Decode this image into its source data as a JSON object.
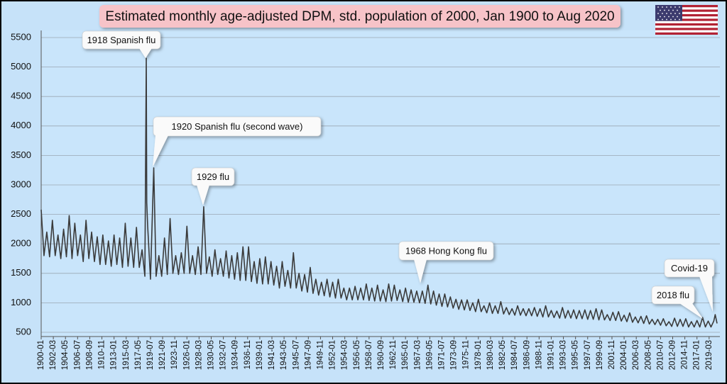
{
  "chart_data": {
    "type": "line",
    "title": "Estimated monthly age-adjusted DPM, std. population of 2000, Jan 1900 to Aug 2020",
    "color": "#3a3a3a",
    "grid": true,
    "xlim": [
      "1900-01",
      "2020-08"
    ],
    "ylim": [
      500,
      5500
    ],
    "yticks": [
      500,
      1000,
      1500,
      2000,
      2500,
      3000,
      3500,
      4000,
      4500,
      5000,
      5500
    ],
    "xticks": [
      "1900-01",
      "1902-03",
      "1904-05",
      "1906-07",
      "1908-09",
      "1910-11",
      "1913-01",
      "1915-03",
      "1917-05",
      "1919-07",
      "1921-09",
      "1923-11",
      "1926-01",
      "1928-03",
      "1930-05",
      "1932-07",
      "1934-09",
      "1936-11",
      "1939-01",
      "1941-03",
      "1943-05",
      "1945-07",
      "1947-09",
      "1949-11",
      "1952-01",
      "1954-03",
      "1956-05",
      "1958-07",
      "1960-09",
      "1962-11",
      "1965-01",
      "1967-03",
      "1969-05",
      "1971-07",
      "1973-09",
      "1975-11",
      "1978-01",
      "1980-03",
      "1982-05",
      "1984-07",
      "1986-09",
      "1988-11",
      "1991-01",
      "1993-03",
      "1995-05",
      "1997-07",
      "1999-09",
      "2001-11",
      "2004-01",
      "2006-03",
      "2008-05",
      "2010-07",
      "2012-09",
      "2014-11",
      "2017-01",
      "2019-03"
    ],
    "annotations": [
      "1918 Spanish flu",
      "1920 Spanish flu (second wave)",
      "1929 flu",
      "1968 Hong Kong flu",
      "2018 flu",
      "Covid-19"
    ],
    "x": [
      "1900-01",
      "1900-07",
      "1901-01",
      "1901-07",
      "1902-01",
      "1902-07",
      "1903-01",
      "1903-07",
      "1904-01",
      "1904-07",
      "1905-01",
      "1905-07",
      "1906-01",
      "1906-07",
      "1907-01",
      "1907-07",
      "1908-01",
      "1908-07",
      "1909-01",
      "1909-07",
      "1910-01",
      "1910-07",
      "1911-01",
      "1911-07",
      "1912-01",
      "1912-07",
      "1913-01",
      "1913-07",
      "1914-01",
      "1914-07",
      "1915-01",
      "1915-07",
      "1916-01",
      "1916-07",
      "1917-01",
      "1917-07",
      "1918-01",
      "1918-07",
      "1918-10",
      "1918-11",
      "1919-01",
      "1919-07",
      "1920-02",
      "1920-07",
      "1921-01",
      "1921-07",
      "1922-01",
      "1922-07",
      "1923-01",
      "1923-07",
      "1924-01",
      "1924-07",
      "1925-01",
      "1925-07",
      "1926-01",
      "1926-07",
      "1927-01",
      "1927-07",
      "1928-01",
      "1928-07",
      "1929-01",
      "1929-07",
      "1930-01",
      "1930-07",
      "1931-01",
      "1931-07",
      "1932-01",
      "1932-07",
      "1933-01",
      "1933-07",
      "1934-01",
      "1934-07",
      "1935-01",
      "1935-07",
      "1936-01",
      "1936-07",
      "1937-01",
      "1937-07",
      "1938-01",
      "1938-07",
      "1939-01",
      "1939-07",
      "1940-01",
      "1940-07",
      "1941-01",
      "1941-07",
      "1942-01",
      "1942-07",
      "1943-01",
      "1943-07",
      "1944-01",
      "1944-07",
      "1945-01",
      "1945-07",
      "1946-01",
      "1946-07",
      "1947-01",
      "1947-07",
      "1948-01",
      "1948-07",
      "1949-01",
      "1949-07",
      "1950-01",
      "1950-07",
      "1951-01",
      "1951-07",
      "1952-01",
      "1952-07",
      "1953-01",
      "1953-07",
      "1954-01",
      "1954-07",
      "1955-01",
      "1955-07",
      "1956-01",
      "1956-07",
      "1957-01",
      "1957-07",
      "1958-01",
      "1958-07",
      "1959-01",
      "1959-07",
      "1960-01",
      "1960-07",
      "1961-01",
      "1961-07",
      "1962-01",
      "1962-07",
      "1963-01",
      "1963-07",
      "1964-01",
      "1964-07",
      "1965-01",
      "1965-07",
      "1966-01",
      "1966-07",
      "1967-01",
      "1967-07",
      "1968-01",
      "1968-07",
      "1969-01",
      "1969-07",
      "1970-01",
      "1970-07",
      "1971-01",
      "1971-07",
      "1972-01",
      "1972-07",
      "1973-01",
      "1973-07",
      "1974-01",
      "1974-07",
      "1975-01",
      "1975-07",
      "1976-01",
      "1976-07",
      "1977-01",
      "1977-07",
      "1978-01",
      "1978-07",
      "1979-01",
      "1979-07",
      "1980-01",
      "1980-07",
      "1981-01",
      "1981-07",
      "1982-01",
      "1982-07",
      "1983-01",
      "1983-07",
      "1984-01",
      "1984-07",
      "1985-01",
      "1985-07",
      "1986-01",
      "1986-07",
      "1987-01",
      "1987-07",
      "1988-01",
      "1988-07",
      "1989-01",
      "1989-07",
      "1990-01",
      "1990-07",
      "1991-01",
      "1991-07",
      "1992-01",
      "1992-07",
      "1993-01",
      "1993-07",
      "1994-01",
      "1994-07",
      "1995-01",
      "1995-07",
      "1996-01",
      "1996-07",
      "1997-01",
      "1997-07",
      "1998-01",
      "1998-07",
      "1999-01",
      "1999-07",
      "2000-01",
      "2000-07",
      "2001-01",
      "2001-07",
      "2002-01",
      "2002-07",
      "2003-01",
      "2003-07",
      "2004-01",
      "2004-07",
      "2005-01",
      "2005-07",
      "2006-01",
      "2006-07",
      "2007-01",
      "2007-07",
      "2008-01",
      "2008-07",
      "2009-01",
      "2009-07",
      "2010-01",
      "2010-07",
      "2011-01",
      "2011-07",
      "2012-01",
      "2012-07",
      "2013-01",
      "2013-07",
      "2014-01",
      "2014-07",
      "2015-01",
      "2015-07",
      "2016-01",
      "2016-07",
      "2017-01",
      "2017-07",
      "2018-01",
      "2018-07",
      "2019-01",
      "2019-07",
      "2020-01",
      "2020-04",
      "2020-08"
    ],
    "values": [
      2580,
      1800,
      2200,
      1780,
      2400,
      1800,
      2150,
      1750,
      2250,
      1780,
      2480,
      1750,
      2350,
      1800,
      2150,
      1700,
      2400,
      1750,
      2200,
      1700,
      2120,
      1650,
      2150,
      1650,
      2050,
      1620,
      2150,
      1650,
      2100,
      1600,
      2350,
      1620,
      2100,
      1600,
      2280,
      1600,
      1900,
      1450,
      5150,
      2700,
      2300,
      1400,
      3290,
      1450,
      1800,
      1450,
      2100,
      1480,
      2430,
      1500,
      1800,
      1480,
      1850,
      1500,
      2300,
      1500,
      1800,
      1480,
      1950,
      1480,
      2630,
      1500,
      1780,
      1450,
      1900,
      1480,
      1750,
      1450,
      1880,
      1420,
      1800,
      1400,
      1850,
      1380,
      1950,
      1380,
      1950,
      1360,
      1700,
      1330,
      1750,
      1320,
      1780,
      1320,
      1700,
      1300,
      1620,
      1250,
      1700,
      1280,
      1550,
      1250,
      1850,
      1250,
      1500,
      1200,
      1480,
      1180,
      1600,
      1160,
      1400,
      1130,
      1350,
      1120,
      1400,
      1100,
      1350,
      1080,
      1400,
      1080,
      1250,
      1050,
      1250,
      1050,
      1280,
      1050,
      1250,
      1050,
      1320,
      1040,
      1250,
      1030,
      1300,
      1030,
      1220,
      1020,
      1320,
      1030,
      1300,
      1040,
      1220,
      1020,
      1250,
      1010,
      1220,
      1010,
      1200,
      1000,
      1200,
      990,
      1300,
      980,
      1200,
      960,
      1150,
      940,
      1150,
      930,
      1100,
      910,
      1060,
      890,
      1050,
      880,
      1050,
      870,
      1000,
      850,
      1060,
      850,
      950,
      830,
      1000,
      820,
      950,
      820,
      1020,
      810,
      920,
      800,
      900,
      790,
      950,
      790,
      900,
      780,
      900,
      780,
      920,
      770,
      900,
      760,
      950,
      760,
      870,
      750,
      860,
      740,
      920,
      740,
      870,
      740,
      880,
      730,
      870,
      730,
      880,
      720,
      870,
      720,
      900,
      710,
      880,
      710,
      800,
      700,
      840,
      700,
      850,
      690,
      790,
      680,
      830,
      670,
      760,
      660,
      770,
      650,
      780,
      640,
      720,
      630,
      720,
      620,
      730,
      610,
      680,
      600,
      740,
      600,
      720,
      600,
      730,
      590,
      680,
      590,
      700,
      590,
      750,
      590,
      690,
      590,
      690,
      800,
      650
    ]
  }
}
